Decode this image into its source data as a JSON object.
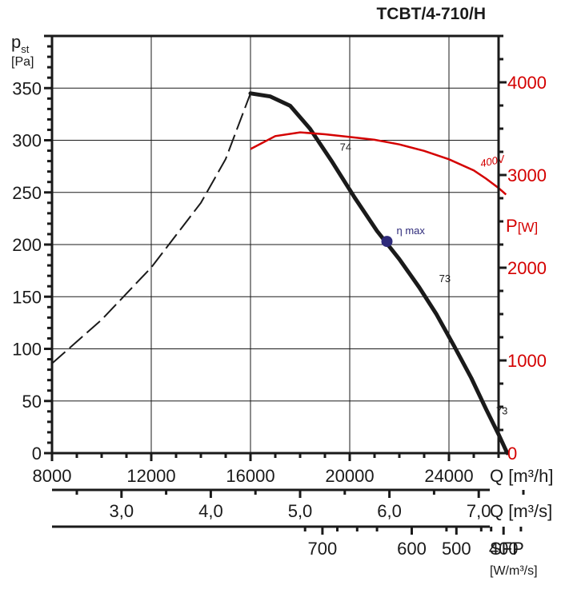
{
  "title": "TCBT/4-710/H",
  "colors": {
    "curve": "#1a1a1a",
    "power": "#d40000",
    "eta_point": "#2e2a7a",
    "grid": "#1a1a1a"
  },
  "chart_data": {
    "type": "line",
    "x_axis": {
      "unit_label": "Q [m³/h]",
      "range": [
        8000,
        26000
      ],
      "ticks": [
        8000,
        12000,
        16000,
        20000,
        24000
      ],
      "tick_labels": [
        "8000",
        "12000",
        "16000",
        "20000",
        "24000"
      ]
    },
    "y_axis": {
      "label_main": "p",
      "label_sub": "st",
      "unit": "[Pa]",
      "range": [
        0,
        400
      ],
      "ticks": [
        0,
        50,
        100,
        150,
        200,
        250,
        300,
        350
      ],
      "tick_labels": [
        "0",
        "50",
        "100",
        "150",
        "200",
        "250",
        "300",
        "350"
      ]
    },
    "y2_axis": {
      "label_main": "P",
      "unit": "[W]",
      "range": [
        0,
        4500
      ],
      "ticks": [
        0,
        1000,
        2000,
        3000,
        4000
      ],
      "tick_labels": [
        "0",
        "1000",
        "2000",
        "3000",
        "4000"
      ]
    },
    "secondary_scales": [
      {
        "id": "flow_m3s",
        "unit_label": "Q [m³/s]",
        "ticks": [
          3.0,
          4.0,
          5.0,
          6.0,
          7.0
        ],
        "tick_labels": [
          "3,0",
          "4,0",
          "5,0",
          "6,0",
          "7,0"
        ],
        "minor_ticks": [
          2.5,
          3.5,
          4.5,
          5.5,
          6.5,
          7.5
        ]
      },
      {
        "id": "sfp",
        "unit_label": "SFP",
        "unit_sub": "[W/m³/s]",
        "ticks": [
          700,
          600,
          500,
          400
        ],
        "tick_labels": [
          "700",
          "600",
          "500",
          "400"
        ],
        "ticks_q_m3h": [
          18900,
          22500,
          24300,
          26200
        ],
        "minor_ticks_q_m3h": [
          18200,
          19500,
          20300,
          21100,
          23900,
          25300,
          25700,
          26900
        ]
      }
    ],
    "series": [
      {
        "id": "stall_boundary",
        "style": "dashed",
        "x": [
          8000,
          10000,
          12000,
          14000,
          15000,
          16000
        ],
        "y": [
          86,
          128,
          178,
          240,
          282,
          345
        ]
      },
      {
        "id": "pressure",
        "style": "solid",
        "x": [
          16000,
          16800,
          17600,
          18400,
          19300,
          20200,
          21100,
          22000,
          22800,
          23500,
          24200,
          24900,
          25500,
          26000,
          26350
        ],
        "y": [
          345,
          342,
          333,
          311,
          279,
          245,
          213,
          186,
          159,
          133,
          103,
          72,
          42,
          18,
          0
        ]
      },
      {
        "id": "power",
        "style": "solid",
        "axis": "y2",
        "name": "400V",
        "x": [
          16000,
          17000,
          18000,
          19000,
          20000,
          21000,
          22000,
          23000,
          24000,
          25000,
          25500,
          26000,
          26300
        ],
        "y": [
          3280,
          3420,
          3460,
          3440,
          3410,
          3380,
          3330,
          3260,
          3170,
          3050,
          2960,
          2860,
          2790
        ]
      }
    ],
    "markers": [
      {
        "id": "eta_max",
        "label": "η max",
        "x": 21500,
        "y": 203
      }
    ],
    "annotations": [
      {
        "text": "74",
        "x": 19600,
        "y": 290
      },
      {
        "text": "73",
        "x": 23600,
        "y": 164
      },
      {
        "text": "73",
        "x": 25900,
        "y": 37
      }
    ],
    "grid": true
  }
}
